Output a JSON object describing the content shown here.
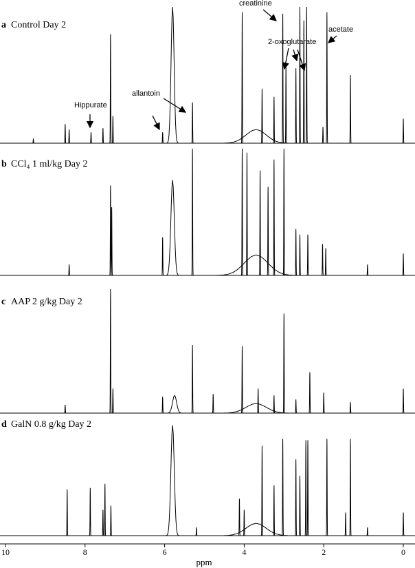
{
  "chart_data": [
    {
      "type": "spectrum",
      "panel": "a",
      "title": "Control Day 2",
      "xlim": [
        10,
        0
      ],
      "ylim": [
        0,
        100
      ],
      "x": [
        9.3,
        8.5,
        8.4,
        7.85,
        7.55,
        7.36,
        7.3,
        6.05,
        5.8,
        5.3,
        4.05,
        3.7,
        3.55,
        3.25,
        3.03,
        2.95,
        2.7,
        2.6,
        2.5,
        2.43,
        2.02,
        1.92,
        1.33,
        0
      ],
      "values": [
        3,
        14,
        10,
        8,
        11,
        80,
        20,
        8,
        100,
        30,
        96,
        10,
        40,
        34,
        95,
        57,
        55,
        100,
        90,
        100,
        12,
        96,
        50,
        18
      ],
      "widths": [
        0.012,
        0.012,
        0.012,
        0.012,
        0.012,
        0.012,
        0.012,
        0.012,
        0.09,
        0.012,
        0.012,
        0.6,
        0.012,
        0.012,
        0.012,
        0.012,
        0.012,
        0.012,
        0.012,
        0.012,
        0.012,
        0.012,
        0.012,
        0.012
      ],
      "annotations": [
        "Hippurate",
        "allantoin",
        "creatinine",
        "2-oxoglutarate",
        "acetate"
      ]
    },
    {
      "type": "spectrum",
      "panel": "b",
      "title": "CCl₄ 1 ml/kg Day 2",
      "xlim": [
        10,
        0
      ],
      "ylim": [
        0,
        100
      ],
      "x": [
        8.4,
        7.36,
        7.33,
        6.05,
        5.8,
        5.3,
        4.05,
        3.93,
        3.7,
        3.6,
        3.4,
        3.25,
        3.0,
        2.7,
        2.6,
        2.4,
        2.03,
        1.95,
        0.9,
        0
      ],
      "values": [
        8,
        66,
        50,
        28,
        70,
        93,
        93,
        90,
        15,
        77,
        65,
        85,
        93,
        34,
        30,
        30,
        23,
        20,
        8,
        16
      ],
      "widths": [
        0.012,
        0.012,
        0.012,
        0.012,
        0.1,
        0.012,
        0.012,
        0.012,
        0.7,
        0.012,
        0.012,
        0.012,
        0.012,
        0.012,
        0.012,
        0.012,
        0.012,
        0.012,
        0.012,
        0.012
      ]
    },
    {
      "type": "spectrum",
      "panel": "c",
      "title": "AAP 2 g/kg Day 2",
      "xlim": [
        10,
        0
      ],
      "ylim": [
        0,
        100
      ],
      "x": [
        8.5,
        7.36,
        7.3,
        6.05,
        5.75,
        5.3,
        4.78,
        4.05,
        3.7,
        3.65,
        3.25,
        3.0,
        2.7,
        2.35,
        2.0,
        1.33,
        0
      ],
      "values": [
        6,
        91,
        18,
        12,
        13,
        50,
        14,
        49,
        7,
        18,
        13,
        73,
        10,
        30,
        15,
        8,
        18
      ],
      "widths": [
        0.012,
        0.012,
        0.012,
        0.012,
        0.12,
        0.012,
        0.012,
        0.012,
        0.6,
        0.012,
        0.012,
        0.012,
        0.012,
        0.012,
        0.012,
        0.012,
        0.012
      ]
    },
    {
      "type": "spectrum",
      "panel": "d",
      "title": "GalN 0.8 g/kg Day 2",
      "xlim": [
        10,
        0
      ],
      "ylim": [
        0,
        100
      ],
      "x": [
        8.45,
        7.87,
        7.55,
        7.5,
        7.35,
        5.8,
        5.2,
        4.12,
        4.0,
        3.7,
        3.55,
        3.25,
        3.03,
        2.7,
        2.6,
        2.45,
        2.4,
        1.92,
        1.45,
        1.33,
        0.9,
        0
      ],
      "values": [
        34,
        35,
        19,
        38,
        22,
        81,
        6,
        27,
        19,
        9,
        66,
        37,
        71,
        56,
        44,
        70,
        70,
        71,
        17,
        71,
        6,
        17
      ],
      "widths": [
        0.012,
        0.012,
        0.012,
        0.012,
        0.012,
        0.1,
        0.012,
        0.012,
        0.012,
        0.6,
        0.012,
        0.012,
        0.012,
        0.012,
        0.012,
        0.012,
        0.012,
        0.012,
        0.012,
        0.012,
        0.012,
        0.012
      ],
      "xticks": [
        10,
        8,
        6,
        4,
        2,
        0
      ],
      "xlabel": "ppm"
    }
  ]
}
